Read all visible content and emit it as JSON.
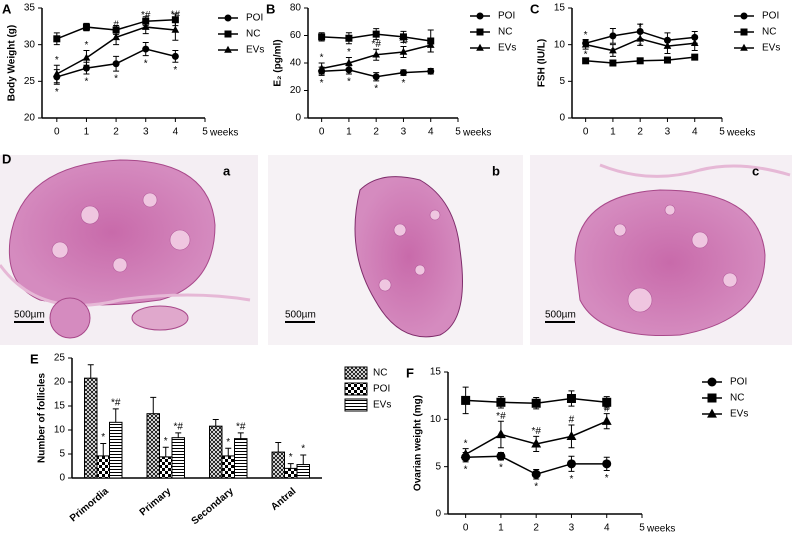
{
  "chart_data": [
    {
      "type": "line",
      "panel_label": "A",
      "ylabel": "Body Weight (g)",
      "xlabel": "weeks",
      "x": [
        0,
        1,
        2,
        3,
        4
      ],
      "xlim": [
        -0.5,
        5
      ],
      "xticks": [
        0,
        1,
        2,
        3,
        4,
        5
      ],
      "ylim": [
        20,
        35
      ],
      "yticks": [
        20,
        25,
        30,
        35
      ],
      "legend": "right",
      "series": [
        {
          "name": "POI",
          "marker": "circle",
          "color": "#000000",
          "values": [
            25.6,
            26.8,
            27.4,
            29.4,
            28.4
          ],
          "errors": [
            1.0,
            0.8,
            1.0,
            0.9,
            0.8
          ],
          "sig": [
            "*",
            "*",
            "*",
            "*",
            "*"
          ]
        },
        {
          "name": "NC",
          "marker": "square",
          "color": "#000000",
          "values": [
            30.8,
            32.4,
            32.0,
            33.2,
            33.4
          ],
          "errors": [
            0.8,
            0.5,
            0.6,
            0.6,
            0.8
          ],
          "sig": [
            null,
            null,
            null,
            null,
            null
          ]
        },
        {
          "name": "EVs",
          "marker": "triangle",
          "color": "#000000",
          "values": [
            26.0,
            28.2,
            31.0,
            32.4,
            32.0
          ],
          "errors": [
            1.2,
            1.0,
            1.0,
            0.9,
            1.4
          ],
          "sig": [
            "*",
            "*",
            "#",
            "*#",
            "*#"
          ]
        }
      ]
    },
    {
      "type": "line",
      "panel_label": "B",
      "ylabel": "E₂ (pg/ml)",
      "xlabel": "weeks",
      "x": [
        0,
        1,
        2,
        3,
        4
      ],
      "xlim": [
        -0.5,
        5
      ],
      "xticks": [
        0,
        1,
        2,
        3,
        4,
        5
      ],
      "ylim": [
        0,
        80
      ],
      "yticks": [
        0,
        20,
        40,
        60,
        80
      ],
      "legend": "right",
      "series": [
        {
          "name": "POI",
          "marker": "circle",
          "color": "#000000",
          "values": [
            34,
            35,
            30,
            33,
            34
          ],
          "errors": [
            3,
            3,
            3,
            2,
            2
          ],
          "sig": [
            "*",
            "*",
            "*",
            "*",
            null
          ]
        },
        {
          "name": "NC",
          "marker": "square",
          "color": "#000000",
          "values": [
            59,
            58,
            61,
            59,
            56
          ],
          "errors": [
            3,
            4,
            4,
            4,
            8
          ],
          "sig": [
            null,
            null,
            null,
            null,
            null
          ]
        },
        {
          "name": "EVs",
          "marker": "triangle",
          "color": "#000000",
          "values": [
            36,
            40,
            46,
            48,
            53
          ],
          "errors": [
            4,
            4,
            4,
            4,
            5
          ],
          "sig": [
            "*",
            "*",
            "*#",
            "*#",
            null
          ]
        }
      ]
    },
    {
      "type": "line",
      "panel_label": "C",
      "ylabel": "FSH (IU/L)",
      "xlabel": "weeks",
      "x": [
        0,
        1,
        2,
        3,
        4
      ],
      "xlim": [
        -0.5,
        5
      ],
      "xticks": [
        0,
        1,
        2,
        3,
        4,
        5
      ],
      "ylim": [
        0,
        15
      ],
      "yticks": [
        0,
        5,
        10,
        15
      ],
      "legend": "right",
      "series": [
        {
          "name": "POI",
          "marker": "circle",
          "color": "#000000",
          "values": [
            10.2,
            11.2,
            11.8,
            10.6,
            11.0
          ],
          "errors": [
            0.5,
            1.0,
            1.0,
            1.0,
            0.8
          ],
          "sig": [
            "*",
            "*",
            "*",
            null,
            null
          ]
        },
        {
          "name": "NC",
          "marker": "square",
          "color": "#000000",
          "values": [
            7.8,
            7.5,
            7.8,
            7.9,
            8.3
          ],
          "errors": [
            0.3,
            0.3,
            0.3,
            0.4,
            0.3
          ],
          "sig": [
            null,
            null,
            null,
            null,
            null
          ]
        },
        {
          "name": "EVs",
          "marker": "triangle",
          "color": "#000000",
          "values": [
            10.0,
            9.2,
            10.8,
            9.8,
            10.2
          ],
          "errors": [
            0.6,
            0.8,
            0.9,
            1.0,
            1.0
          ],
          "sig": [
            "*",
            null,
            "*",
            null,
            null
          ]
        }
      ]
    },
    {
      "type": "bar",
      "panel_label": "E",
      "ylabel": "Number of follicles",
      "categories": [
        "Primordia",
        "Primary",
        "Secondary",
        "Antral"
      ],
      "ylim": [
        0,
        25
      ],
      "yticks": [
        0,
        5,
        10,
        15,
        20,
        25
      ],
      "legend": "right",
      "series": [
        {
          "name": "NC",
          "hatch": "cross",
          "color": "#000000",
          "values": [
            20.8,
            13.4,
            10.8,
            5.4
          ],
          "errors": [
            2.8,
            3.4,
            1.4,
            2.0
          ],
          "sig": [
            null,
            null,
            null,
            null
          ]
        },
        {
          "name": "POI",
          "hatch": "check",
          "color": "#000000",
          "values": [
            4.6,
            4.4,
            4.6,
            2.0
          ],
          "errors": [
            2.6,
            2.0,
            1.6,
            1.0
          ],
          "sig": [
            "*",
            "*",
            "*",
            "*"
          ]
        },
        {
          "name": "EVs",
          "hatch": "horizontal",
          "color": "#000000",
          "values": [
            11.6,
            8.4,
            8.2,
            2.8
          ],
          "errors": [
            2.8,
            1.0,
            1.2,
            2.0
          ],
          "sig": [
            "*#",
            "*#",
            "*#",
            "*"
          ]
        }
      ]
    },
    {
      "type": "line",
      "panel_label": "F",
      "ylabel": "Ovarian weight (mg)",
      "xlabel": "weeks",
      "x": [
        0,
        1,
        2,
        3,
        4
      ],
      "xlim": [
        -0.5,
        5
      ],
      "xticks": [
        0,
        1,
        2,
        3,
        4,
        5
      ],
      "ylim": [
        0,
        15
      ],
      "yticks": [
        0,
        5,
        10,
        15
      ],
      "legend": "right",
      "series": [
        {
          "name": "POI",
          "marker": "circle",
          "color": "#000000",
          "values": [
            6.0,
            6.1,
            4.2,
            5.3,
            5.3
          ],
          "errors": [
            0.5,
            0.4,
            0.5,
            0.8,
            0.7
          ],
          "sig": [
            "*",
            "*",
            "*",
            "*",
            "*"
          ]
        },
        {
          "name": "NC",
          "marker": "square",
          "color": "#000000",
          "values": [
            12.0,
            11.8,
            11.7,
            12.2,
            11.8
          ],
          "errors": [
            1.4,
            0.6,
            0.6,
            0.8,
            0.6
          ],
          "sig": [
            null,
            null,
            null,
            null,
            null
          ]
        },
        {
          "name": "EVs",
          "marker": "triangle",
          "color": "#000000",
          "values": [
            6.3,
            8.4,
            7.4,
            8.2,
            9.8
          ],
          "errors": [
            0.6,
            1.4,
            0.8,
            1.2,
            0.8
          ],
          "sig": [
            "*",
            "*#",
            "*#",
            "#",
            "#"
          ]
        }
      ]
    }
  ],
  "histology": {
    "panel_label": "D",
    "images": [
      {
        "label": "a",
        "scale_bar": "500µm"
      },
      {
        "label": "b",
        "scale_bar": "500µm"
      },
      {
        "label": "c",
        "scale_bar": "500µm"
      }
    ]
  }
}
